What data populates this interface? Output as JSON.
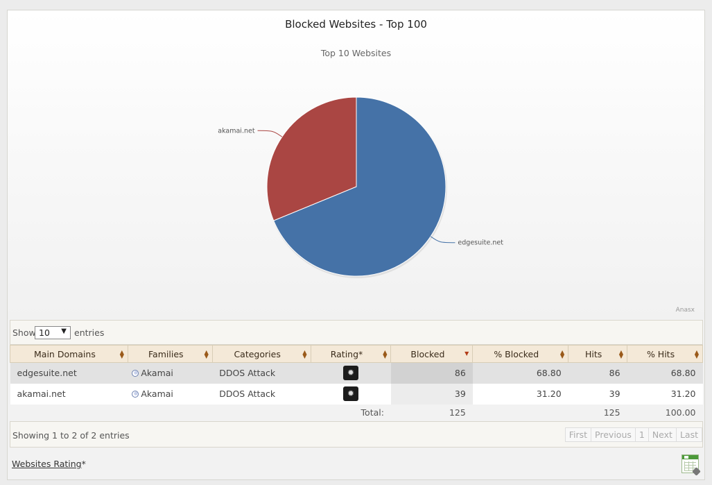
{
  "chart": {
    "title": "Blocked Websites - Top 100",
    "subtitle": "Top 10 Websites",
    "credit": "Anasx"
  },
  "chart_data": {
    "type": "pie",
    "title": "Blocked Websites - Top 100",
    "subtitle": "Top 10 Websites",
    "slices": [
      {
        "label": "edgesuite.net",
        "value": 68.8,
        "color": "#4572a7"
      },
      {
        "label": "akamai.net",
        "value": 31.2,
        "color": "#aa4643"
      }
    ]
  },
  "toolbar": {
    "show_label": "Show",
    "entries_value": "10",
    "entries_label": "entries"
  },
  "table": {
    "columns": [
      "Main Domains",
      "Families",
      "Categories",
      "Rating*",
      "Blocked",
      "% Blocked",
      "Hits",
      "% Hits"
    ],
    "rows": [
      {
        "domain": "edgesuite.net",
        "family": "Akamai",
        "category": "DDOS Attack",
        "blocked": "86",
        "pct_blocked": "68.80",
        "hits": "86",
        "pct_hits": "68.80"
      },
      {
        "domain": "akamai.net",
        "family": "Akamai",
        "category": "DDOS Attack",
        "blocked": "39",
        "pct_blocked": "31.20",
        "hits": "39",
        "pct_hits": "31.20"
      }
    ],
    "total": {
      "label": "Total:",
      "blocked": "125",
      "hits": "125",
      "pct_hits": "100.00"
    }
  },
  "footer": {
    "info": "Showing 1 to 2 of 2 entries",
    "pager": [
      "First",
      "Previous",
      "1",
      "Next",
      "Last"
    ],
    "rating_link": "Websites Rating",
    "rating_star": "*"
  },
  "icons": {
    "rating": "bug-icon",
    "family": "globe-icon",
    "export": "spreadsheet-export-icon"
  }
}
